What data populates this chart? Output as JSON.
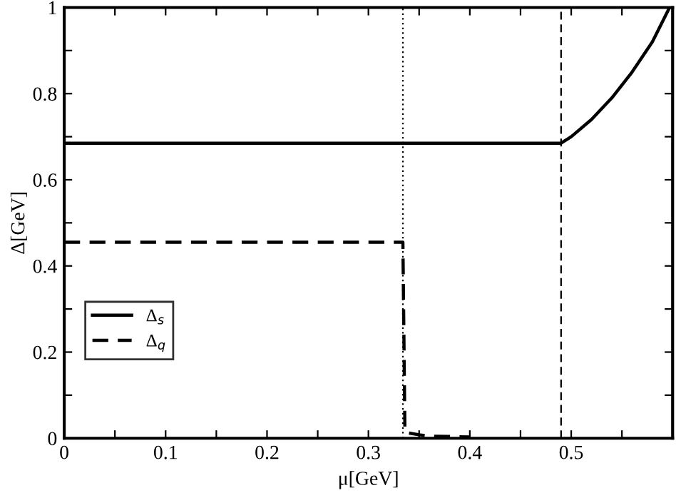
{
  "chart_data": {
    "type": "line",
    "xlabel": "μ[GeV]",
    "ylabel": "Δ[GeV]",
    "xlim": [
      0,
      0.6
    ],
    "ylim": [
      0,
      1
    ],
    "xticks": [
      0,
      {
        "value": 0.05,
        "label": null
      },
      0.1,
      {
        "value": 0.15,
        "label": null
      },
      0.2,
      {
        "value": 0.25,
        "label": null
      },
      0.3,
      {
        "value": 0.35,
        "label": null
      },
      0.4,
      {
        "value": 0.45,
        "label": null
      },
      0.5,
      {
        "value": 0.55,
        "label": null
      }
    ],
    "yticks": [
      0,
      {
        "value": 0.1,
        "label": null
      },
      0.2,
      {
        "value": 0.3,
        "label": null
      },
      0.4,
      {
        "value": 0.5,
        "label": null
      },
      0.6,
      {
        "value": 0.7,
        "label": null
      },
      0.8,
      {
        "value": 0.9,
        "label": null
      },
      1
    ],
    "grid": false,
    "legend": "left",
    "marker": "none",
    "series": [
      {
        "name": "Δ$_{s}$",
        "color": "#000000",
        "line_style": "solid",
        "x": [
          0,
          0.49,
          0.5,
          0.52,
          0.54,
          0.56,
          0.58,
          0.597
        ],
        "values": [
          0.685,
          0.685,
          0.7,
          0.74,
          0.79,
          0.85,
          0.92,
          1.0
        ]
      },
      {
        "name": "Δ$_{q}$",
        "color": "#000000",
        "line_style": "dashed",
        "x": [
          0,
          0.334,
          0.336,
          0.34,
          0.35,
          0.36,
          0.38,
          0.4
        ],
        "values": [
          0.455,
          0.455,
          0.015,
          0.012,
          0.008,
          0.005,
          0.004,
          0.003
        ]
      }
    ],
    "ref_lines": [
      {
        "axis": "x",
        "value": 0.334,
        "label": null,
        "color": "#000000",
        "line_style": "dotted"
      },
      {
        "axis": "x",
        "value": 0.49,
        "label": null,
        "color": "#000000",
        "line_style": "dashed"
      }
    ]
  }
}
